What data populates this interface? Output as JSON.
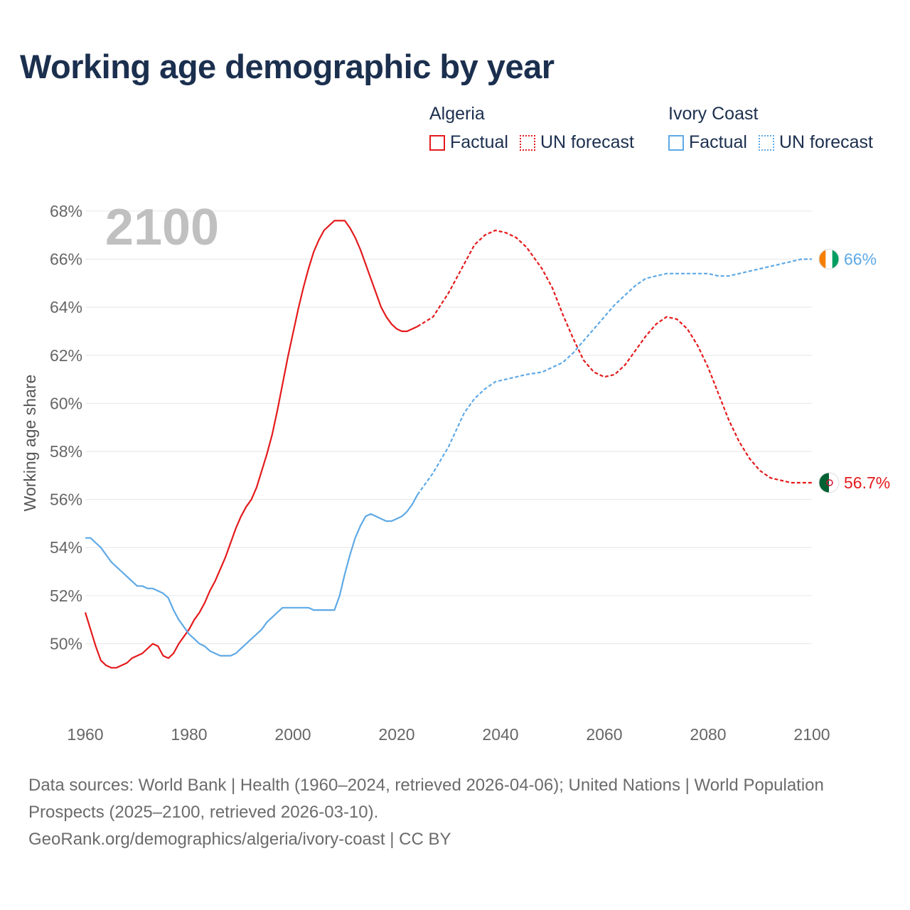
{
  "title": "Working age demographic by year",
  "legend": {
    "groups": [
      {
        "name": "Algeria",
        "color": "#e41a1c",
        "items": [
          {
            "label": "Factual",
            "style": "solid"
          },
          {
            "label": "UN forecast",
            "style": "dotted"
          }
        ]
      },
      {
        "name": "Ivory Coast",
        "color": "#5ea9e6",
        "items": [
          {
            "label": "Factual",
            "style": "solid"
          },
          {
            "label": "UN forecast",
            "style": "dotted"
          }
        ]
      }
    ]
  },
  "chart_data": {
    "type": "line",
    "title": "Working age demographic by year",
    "xlabel": "",
    "ylabel": "Working age share",
    "xlim": [
      1960,
      2100
    ],
    "ylim": [
      47.5,
      68.5
    ],
    "x_ticks": [
      1960,
      1980,
      2000,
      2020,
      2040,
      2060,
      2080,
      2100
    ],
    "x_tick_labels": [
      "1960",
      "1980",
      "2000",
      "2020",
      "2040",
      "2060",
      "2080",
      "2100"
    ],
    "y_ticks": [
      50,
      52,
      54,
      56,
      58,
      60,
      62,
      64,
      66,
      68
    ],
    "y_tick_labels": [
      "50%",
      "52%",
      "54%",
      "56%",
      "58%",
      "60%",
      "62%",
      "64%",
      "66%",
      "68%"
    ],
    "grid": true,
    "year_watermark": "2100",
    "forecast_start": 2024,
    "series": [
      {
        "name": "Algeria",
        "color": "#e41a1c",
        "end_label": "56.7%",
        "x": [
          1960,
          1961,
          1962,
          1963,
          1964,
          1965,
          1966,
          1967,
          1968,
          1969,
          1970,
          1971,
          1972,
          1973,
          1974,
          1975,
          1976,
          1977,
          1978,
          1979,
          1980,
          1981,
          1982,
          1983,
          1984,
          1985,
          1986,
          1987,
          1988,
          1989,
          1990,
          1991,
          1992,
          1993,
          1994,
          1995,
          1996,
          1997,
          1998,
          1999,
          2000,
          2001,
          2002,
          2003,
          2004,
          2005,
          2006,
          2007,
          2008,
          2009,
          2010,
          2011,
          2012,
          2013,
          2014,
          2015,
          2016,
          2017,
          2018,
          2019,
          2020,
          2021,
          2022,
          2023,
          2024,
          2027,
          2030,
          2033,
          2035,
          2037,
          2039,
          2041,
          2043,
          2045,
          2048,
          2050,
          2052,
          2054,
          2056,
          2058,
          2060,
          2062,
          2064,
          2066,
          2068,
          2070,
          2072,
          2074,
          2076,
          2078,
          2080,
          2082,
          2084,
          2086,
          2088,
          2090,
          2092,
          2094,
          2096,
          2098,
          2100
        ],
        "y": [
          51.3,
          50.6,
          49.9,
          49.3,
          49.1,
          49.0,
          49.0,
          49.1,
          49.2,
          49.4,
          49.5,
          49.6,
          49.8,
          50.0,
          49.9,
          49.5,
          49.4,
          49.6,
          50.0,
          50.3,
          50.6,
          51.0,
          51.3,
          51.7,
          52.2,
          52.6,
          53.1,
          53.6,
          54.2,
          54.8,
          55.3,
          55.7,
          56.0,
          56.5,
          57.2,
          57.9,
          58.7,
          59.7,
          60.8,
          61.9,
          62.9,
          63.9,
          64.8,
          65.6,
          66.3,
          66.8,
          67.2,
          67.4,
          67.6,
          67.6,
          67.6,
          67.3,
          66.9,
          66.4,
          65.8,
          65.2,
          64.6,
          64.0,
          63.6,
          63.3,
          63.1,
          63.0,
          63.0,
          63.1,
          63.2,
          63.6,
          64.6,
          65.8,
          66.6,
          67.0,
          67.2,
          67.1,
          66.9,
          66.5,
          65.6,
          64.8,
          63.7,
          62.7,
          61.8,
          61.3,
          61.1,
          61.2,
          61.6,
          62.2,
          62.8,
          63.3,
          63.6,
          63.5,
          63.1,
          62.4,
          61.5,
          60.4,
          59.3,
          58.4,
          57.7,
          57.2,
          56.9,
          56.8,
          56.7,
          56.7,
          56.7
        ]
      },
      {
        "name": "Ivory Coast",
        "color": "#5ea9e6",
        "end_label": "66%",
        "x": [
          1960,
          1961,
          1962,
          1963,
          1964,
          1965,
          1966,
          1967,
          1968,
          1969,
          1970,
          1971,
          1972,
          1973,
          1974,
          1975,
          1976,
          1977,
          1978,
          1979,
          1980,
          1981,
          1982,
          1983,
          1984,
          1985,
          1986,
          1987,
          1988,
          1989,
          1990,
          1991,
          1992,
          1993,
          1994,
          1995,
          1996,
          1997,
          1998,
          1999,
          2000,
          2001,
          2002,
          2003,
          2004,
          2005,
          2006,
          2007,
          2008,
          2009,
          2010,
          2011,
          2012,
          2013,
          2014,
          2015,
          2016,
          2017,
          2018,
          2019,
          2020,
          2021,
          2022,
          2023,
          2024,
          2027,
          2030,
          2033,
          2035,
          2037,
          2039,
          2041,
          2043,
          2045,
          2048,
          2050,
          2052,
          2054,
          2056,
          2058,
          2060,
          2062,
          2064,
          2066,
          2068,
          2070,
          2072,
          2074,
          2076,
          2078,
          2080,
          2082,
          2084,
          2086,
          2088,
          2090,
          2092,
          2094,
          2096,
          2098,
          2100
        ],
        "y": [
          54.4,
          54.4,
          54.2,
          54.0,
          53.7,
          53.4,
          53.2,
          53.0,
          52.8,
          52.6,
          52.4,
          52.4,
          52.3,
          52.3,
          52.2,
          52.1,
          51.9,
          51.4,
          51.0,
          50.7,
          50.4,
          50.2,
          50.0,
          49.9,
          49.7,
          49.6,
          49.5,
          49.5,
          49.5,
          49.6,
          49.8,
          50.0,
          50.2,
          50.4,
          50.6,
          50.9,
          51.1,
          51.3,
          51.5,
          51.5,
          51.5,
          51.5,
          51.5,
          51.5,
          51.4,
          51.4,
          51.4,
          51.4,
          51.4,
          52.0,
          52.9,
          53.7,
          54.4,
          54.9,
          55.3,
          55.4,
          55.3,
          55.2,
          55.1,
          55.1,
          55.2,
          55.3,
          55.5,
          55.8,
          56.2,
          57.1,
          58.2,
          59.6,
          60.2,
          60.6,
          60.9,
          61.0,
          61.1,
          61.2,
          61.3,
          61.5,
          61.7,
          62.1,
          62.6,
          63.1,
          63.6,
          64.1,
          64.5,
          64.9,
          65.2,
          65.3,
          65.4,
          65.4,
          65.4,
          65.4,
          65.4,
          65.3,
          65.3,
          65.4,
          65.5,
          65.6,
          65.7,
          65.8,
          65.9,
          66.0,
          66.0
        ]
      }
    ]
  },
  "footer": {
    "sources": "Data sources: World Bank | Health (1960–2024, retrieved 2026-04-06); United Nations | World Population Prospects (2025–2100, retrieved 2026-03-10).",
    "credit": "GeoRank.org/demographics/algeria/ivory-coast | CC BY"
  }
}
